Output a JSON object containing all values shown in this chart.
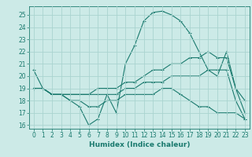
{
  "background_color": "#cceae7",
  "grid_color": "#aad4d0",
  "line_color": "#1a7a6e",
  "marker": "+",
  "markersize": 3,
  "linewidth": 0.8,
  "curves": [
    {
      "x": [
        0,
        1,
        2,
        3,
        4,
        5,
        6,
        7,
        8,
        9,
        10,
        11,
        12,
        13,
        14,
        15,
        16,
        17,
        18,
        19,
        20,
        21,
        22,
        23
      ],
      "y": [
        20.5,
        19.0,
        18.5,
        18.5,
        18.0,
        17.5,
        16.0,
        16.5,
        18.5,
        17.0,
        21.0,
        22.5,
        24.5,
        25.2,
        25.3,
        25.0,
        24.5,
        23.5,
        22.0,
        20.5,
        20.0,
        22.0,
        19.0,
        18.0
      ]
    },
    {
      "x": [
        0,
        1,
        2,
        3,
        4,
        5,
        6,
        7,
        8,
        9,
        10,
        11,
        12,
        13,
        14,
        15,
        16,
        17,
        18,
        19,
        20,
        21,
        22,
        23
      ],
      "y": [
        19.0,
        19.0,
        18.5,
        18.5,
        18.5,
        18.5,
        18.5,
        19.0,
        19.0,
        19.0,
        19.5,
        19.5,
        20.0,
        20.5,
        20.5,
        21.0,
        21.0,
        21.5,
        21.5,
        22.0,
        21.5,
        21.5,
        19.0,
        17.0
      ]
    },
    {
      "x": [
        0,
        1,
        2,
        3,
        4,
        5,
        6,
        7,
        8,
        9,
        10,
        11,
        12,
        13,
        14,
        15,
        16,
        17,
        18,
        19,
        20,
        21,
        22,
        23
      ],
      "y": [
        19.0,
        19.0,
        18.5,
        18.5,
        18.5,
        18.5,
        18.5,
        18.5,
        18.5,
        18.5,
        19.0,
        19.0,
        19.5,
        19.5,
        19.5,
        20.0,
        20.0,
        20.0,
        20.0,
        20.5,
        20.5,
        20.5,
        18.0,
        16.5
      ]
    },
    {
      "x": [
        0,
        1,
        2,
        3,
        4,
        5,
        6,
        7,
        8,
        9,
        10,
        11,
        12,
        13,
        14,
        15,
        16,
        17,
        18,
        19,
        20,
        21,
        22,
        23
      ],
      "y": [
        19.0,
        19.0,
        18.5,
        18.5,
        18.0,
        18.0,
        17.5,
        17.5,
        18.0,
        18.0,
        18.5,
        18.5,
        18.5,
        18.5,
        19.0,
        19.0,
        18.5,
        18.0,
        17.5,
        17.5,
        17.0,
        17.0,
        17.0,
        16.5
      ]
    }
  ],
  "xlim": [
    -0.5,
    23.5
  ],
  "ylim": [
    15.7,
    25.7
  ],
  "yticks": [
    16,
    17,
    18,
    19,
    20,
    21,
    22,
    23,
    24,
    25
  ],
  "xticks": [
    0,
    1,
    2,
    3,
    4,
    5,
    6,
    7,
    8,
    9,
    10,
    11,
    12,
    13,
    14,
    15,
    16,
    17,
    18,
    19,
    20,
    21,
    22,
    23
  ],
  "xlabel": "Humidex (Indice chaleur)",
  "xlabel_fontsize": 6.5,
  "tick_fontsize": 5.5
}
